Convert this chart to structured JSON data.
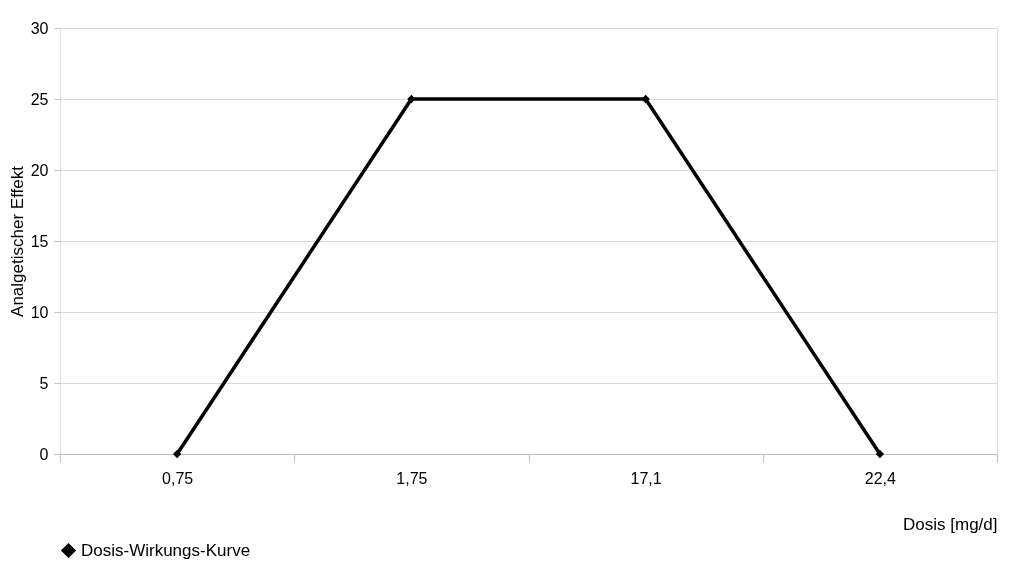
{
  "chart_data": {
    "type": "line",
    "categories": [
      "0,75",
      "1,75",
      "17,1",
      "22,4"
    ],
    "series": [
      {
        "name": "Dosis-Wirkungs-Kurve",
        "color": "#000000",
        "values": [
          0,
          25,
          25,
          0
        ]
      }
    ],
    "xlabel": "Dosis [mg/d]",
    "ylabel": "Analgetischer Effekt",
    "ylim": [
      0,
      30
    ],
    "yticks": [
      0,
      5,
      10,
      15,
      20,
      25,
      30
    ],
    "grid": "y",
    "legend": "bottom",
    "marker": "diamond",
    "line_style": "solid"
  }
}
